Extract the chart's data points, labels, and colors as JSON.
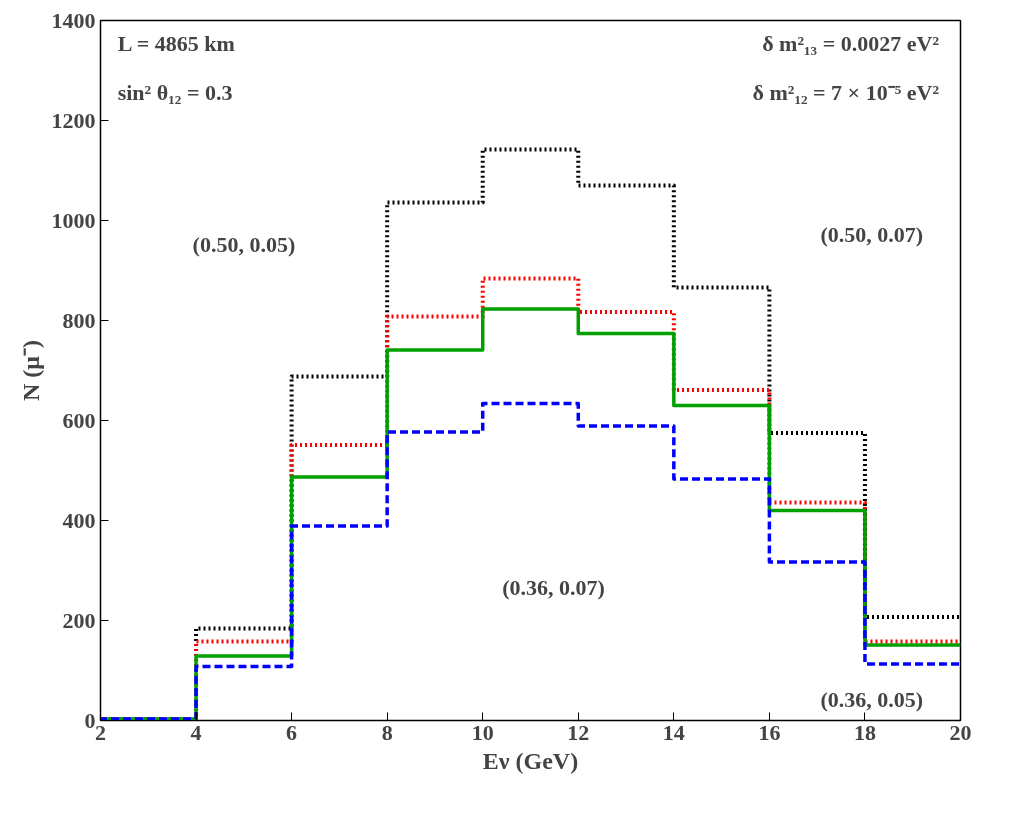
{
  "chart_data": {
    "type": "histogram",
    "xlabel": "Eν (GeV)",
    "ylabel": "N (μ⁻)",
    "bins": [
      2,
      4,
      6,
      8,
      10,
      12,
      14,
      16,
      18,
      20
    ],
    "series": [
      {
        "color": "#000000",
        "line_style": "dotted",
        "values": [
          3,
          184,
          688,
          1036,
          1142,
          1070,
          866,
          575,
          207
        ]
      },
      {
        "color": "#ff0000",
        "line_style": "dotted",
        "values": [
          3,
          158,
          551,
          808,
          884,
          817,
          661,
          436,
          158
        ]
      },
      {
        "color": "#00a000",
        "line_style": "solid",
        "values": [
          3,
          129,
          487,
          741,
          823,
          774,
          630,
          420,
          151
        ]
      },
      {
        "color": "#0000ff",
        "line_style": "dashed",
        "values": [
          3,
          108,
          389,
          577,
          634,
          589,
          483,
          317,
          113
        ]
      }
    ],
    "xlim": [
      2,
      20
    ],
    "ylim": [
      0,
      1400
    ],
    "xticks": [
      2,
      4,
      6,
      8,
      10,
      12,
      14,
      16,
      18,
      20
    ],
    "yticks": [
      0,
      200,
      400,
      600,
      800,
      1000,
      1200,
      1400
    ],
    "grid": false,
    "annotations": [
      "L = 4865 km",
      "sin² θ₁₂ = 0.3",
      "δ m²₁₃ = 0.0027 eV²",
      "δ m²₁₂ = 7 × 10⁻⁵ eV²",
      "(0.50,  0.05)",
      "(0.50,  0.07)",
      "(0.36,  0.07)",
      "(0.36,  0.05)"
    ]
  }
}
